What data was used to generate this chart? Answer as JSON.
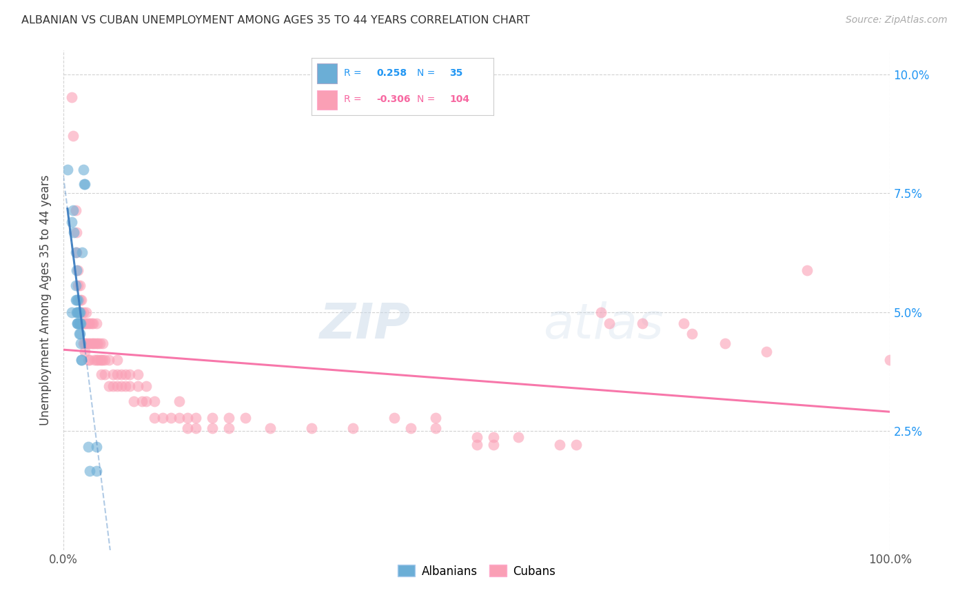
{
  "title": "ALBANIAN VS CUBAN UNEMPLOYMENT AMONG AGES 35 TO 44 YEARS CORRELATION CHART",
  "source": "Source: ZipAtlas.com",
  "ylabel_label": "Unemployment Among Ages 35 to 44 years",
  "xlim": [
    0.0,
    1.0
  ],
  "ylim": [
    0.0,
    0.105
  ],
  "yticks": [
    0.025,
    0.05,
    0.075,
    0.1
  ],
  "xticks": [
    0.0,
    1.0
  ],
  "legend_albanian_R": "0.258",
  "legend_albanian_N": "35",
  "legend_cuban_R": "-0.306",
  "legend_cuban_N": "104",
  "albanian_color": "#6baed6",
  "cuban_color": "#fa9fb5",
  "albanian_line_color": "#3a7bbf",
  "cuban_line_color": "#f768a1",
  "albanian_scatter": [
    [
      0.005,
      0.08
    ],
    [
      0.01,
      0.069
    ],
    [
      0.01,
      0.05
    ],
    [
      0.012,
      0.0714
    ],
    [
      0.013,
      0.0667
    ],
    [
      0.015,
      0.0526
    ],
    [
      0.015,
      0.0625
    ],
    [
      0.015,
      0.0556
    ],
    [
      0.016,
      0.05
    ],
    [
      0.016,
      0.0588
    ],
    [
      0.016,
      0.0526
    ],
    [
      0.017,
      0.05
    ],
    [
      0.017,
      0.0476
    ],
    [
      0.017,
      0.0476
    ],
    [
      0.018,
      0.05
    ],
    [
      0.018,
      0.0476
    ],
    [
      0.018,
      0.0526
    ],
    [
      0.019,
      0.05
    ],
    [
      0.019,
      0.0476
    ],
    [
      0.019,
      0.0455
    ],
    [
      0.02,
      0.05
    ],
    [
      0.02,
      0.0476
    ],
    [
      0.02,
      0.0455
    ],
    [
      0.021,
      0.0435
    ],
    [
      0.021,
      0.0476
    ],
    [
      0.022,
      0.04
    ],
    [
      0.022,
      0.04
    ],
    [
      0.023,
      0.0625
    ],
    [
      0.024,
      0.08
    ],
    [
      0.025,
      0.0769
    ],
    [
      0.026,
      0.0769
    ],
    [
      0.03,
      0.0217
    ],
    [
      0.032,
      0.0167
    ],
    [
      0.04,
      0.0217
    ],
    [
      0.04,
      0.0167
    ]
  ],
  "cuban_scatter": [
    [
      0.01,
      0.0952
    ],
    [
      0.012,
      0.087
    ],
    [
      0.015,
      0.0714
    ],
    [
      0.016,
      0.0667
    ],
    [
      0.016,
      0.0625
    ],
    [
      0.018,
      0.0588
    ],
    [
      0.018,
      0.0556
    ],
    [
      0.02,
      0.0556
    ],
    [
      0.02,
      0.0526
    ],
    [
      0.02,
      0.05
    ],
    [
      0.022,
      0.0526
    ],
    [
      0.022,
      0.05
    ],
    [
      0.022,
      0.0476
    ],
    [
      0.024,
      0.05
    ],
    [
      0.024,
      0.0476
    ],
    [
      0.024,
      0.0435
    ],
    [
      0.026,
      0.0476
    ],
    [
      0.026,
      0.0435
    ],
    [
      0.026,
      0.0417
    ],
    [
      0.028,
      0.05
    ],
    [
      0.028,
      0.0476
    ],
    [
      0.028,
      0.0435
    ],
    [
      0.03,
      0.0476
    ],
    [
      0.03,
      0.0435
    ],
    [
      0.03,
      0.04
    ],
    [
      0.032,
      0.0476
    ],
    [
      0.032,
      0.0435
    ],
    [
      0.032,
      0.04
    ],
    [
      0.034,
      0.0476
    ],
    [
      0.034,
      0.0435
    ],
    [
      0.036,
      0.0476
    ],
    [
      0.036,
      0.0435
    ],
    [
      0.038,
      0.0435
    ],
    [
      0.038,
      0.04
    ],
    [
      0.04,
      0.0476
    ],
    [
      0.04,
      0.0435
    ],
    [
      0.04,
      0.04
    ],
    [
      0.042,
      0.0435
    ],
    [
      0.042,
      0.04
    ],
    [
      0.044,
      0.0435
    ],
    [
      0.044,
      0.04
    ],
    [
      0.046,
      0.04
    ],
    [
      0.046,
      0.037
    ],
    [
      0.048,
      0.0435
    ],
    [
      0.048,
      0.04
    ],
    [
      0.05,
      0.04
    ],
    [
      0.05,
      0.037
    ],
    [
      0.055,
      0.04
    ],
    [
      0.055,
      0.0345
    ],
    [
      0.06,
      0.037
    ],
    [
      0.06,
      0.0345
    ],
    [
      0.065,
      0.04
    ],
    [
      0.065,
      0.037
    ],
    [
      0.065,
      0.0345
    ],
    [
      0.07,
      0.037
    ],
    [
      0.07,
      0.0345
    ],
    [
      0.075,
      0.037
    ],
    [
      0.075,
      0.0345
    ],
    [
      0.08,
      0.037
    ],
    [
      0.08,
      0.0345
    ],
    [
      0.085,
      0.0313
    ],
    [
      0.09,
      0.037
    ],
    [
      0.09,
      0.0345
    ],
    [
      0.095,
      0.0313
    ],
    [
      0.1,
      0.0345
    ],
    [
      0.1,
      0.0313
    ],
    [
      0.11,
      0.0313
    ],
    [
      0.11,
      0.0278
    ],
    [
      0.12,
      0.0278
    ],
    [
      0.13,
      0.0278
    ],
    [
      0.14,
      0.0313
    ],
    [
      0.14,
      0.0278
    ],
    [
      0.15,
      0.0278
    ],
    [
      0.15,
      0.0256
    ],
    [
      0.16,
      0.0278
    ],
    [
      0.16,
      0.0256
    ],
    [
      0.18,
      0.0278
    ],
    [
      0.18,
      0.0256
    ],
    [
      0.2,
      0.0278
    ],
    [
      0.2,
      0.0256
    ],
    [
      0.22,
      0.0278
    ],
    [
      0.25,
      0.0256
    ],
    [
      0.3,
      0.0256
    ],
    [
      0.35,
      0.0256
    ],
    [
      0.4,
      0.0278
    ],
    [
      0.42,
      0.0256
    ],
    [
      0.45,
      0.0278
    ],
    [
      0.45,
      0.0256
    ],
    [
      0.5,
      0.0238
    ],
    [
      0.5,
      0.0222
    ],
    [
      0.52,
      0.0238
    ],
    [
      0.52,
      0.0222
    ],
    [
      0.55,
      0.0238
    ],
    [
      0.6,
      0.0222
    ],
    [
      0.62,
      0.0222
    ],
    [
      0.65,
      0.05
    ],
    [
      0.66,
      0.0476
    ],
    [
      0.7,
      0.0476
    ],
    [
      0.75,
      0.0476
    ],
    [
      0.76,
      0.0455
    ],
    [
      0.8,
      0.0435
    ],
    [
      0.85,
      0.0417
    ],
    [
      0.9,
      0.0588
    ],
    [
      1.0,
      0.04
    ]
  ],
  "watermark_zip": "ZIP",
  "watermark_atlas": "atlas",
  "background_color": "#ffffff",
  "grid_color": "#cccccc"
}
